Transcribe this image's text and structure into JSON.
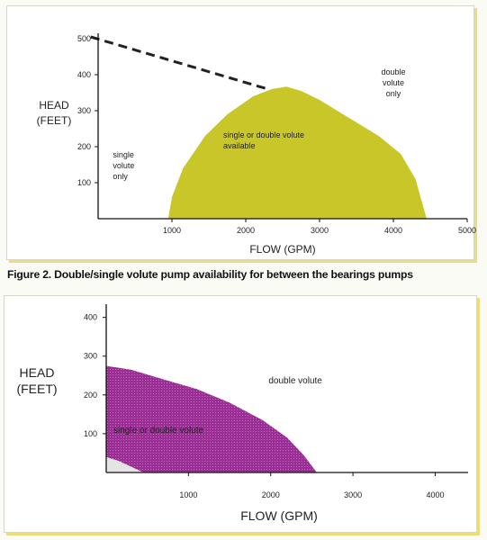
{
  "caption": "Figure 2. Double/single volute pump availability for between the bearings pumps",
  "colors": {
    "yellow_region": "#c9c62a",
    "purple_region": "#9a2e94",
    "grey_region": "#e4e4e4",
    "accent_border": "#e9de7a"
  },
  "chart_data": [
    {
      "type": "area",
      "xlabel": "FLOW (GPM)",
      "ylabel": "HEAD\n(FEET)",
      "xlim": [
        0,
        5000
      ],
      "ylim": [
        0,
        500
      ],
      "x_ticks": [
        "1000",
        "2000",
        "3000",
        "4000",
        "5000"
      ],
      "y_ticks": [
        "100",
        "200",
        "300",
        "400",
        "500"
      ],
      "regions": [
        {
          "label": "single or double volute\navailable",
          "boundary": [
            [
              950,
              0
            ],
            [
              1000,
              60
            ],
            [
              1150,
              140
            ],
            [
              1450,
              230
            ],
            [
              1750,
              290
            ],
            [
              2100,
              340
            ],
            [
              2350,
              360
            ],
            [
              2550,
              367
            ],
            [
              2750,
              355
            ],
            [
              3000,
              330
            ],
            [
              3400,
              280
            ],
            [
              3800,
              230
            ],
            [
              4100,
              180
            ],
            [
              4300,
              110
            ],
            [
              4450,
              0
            ]
          ]
        }
      ],
      "dashed_line": [
        [
          -100,
          505
        ],
        [
          2300,
          360
        ]
      ],
      "annotations": [
        {
          "text": "single\nvolute\nonly",
          "x": 200,
          "y": 170
        },
        {
          "text": "double\nvolute\nonly",
          "x": 4000,
          "y": 400
        }
      ]
    },
    {
      "type": "area",
      "xlabel": "FLOW (GPM)",
      "ylabel": "HEAD\n(FEET)",
      "xlim": [
        0,
        4400
      ],
      "ylim": [
        0,
        420
      ],
      "x_ticks": [
        "1000",
        "2000",
        "3000",
        "4000"
      ],
      "y_ticks": [
        "100",
        "200",
        "300",
        "400"
      ],
      "regions": [
        {
          "label": "single or double volute",
          "boundary": [
            [
              0,
              275
            ],
            [
              300,
              265
            ],
            [
              700,
              240
            ],
            [
              1100,
              215
            ],
            [
              1500,
              180
            ],
            [
              1900,
              135
            ],
            [
              2200,
              90
            ],
            [
              2400,
              45
            ],
            [
              2560,
              0
            ],
            [
              450,
              0
            ],
            [
              300,
              15
            ],
            [
              150,
              30
            ],
            [
              0,
              40
            ]
          ]
        },
        {
          "label": "",
          "boundary": [
            [
              0,
              40
            ],
            [
              150,
              30
            ],
            [
              300,
              15
            ],
            [
              450,
              0
            ],
            [
              0,
              0
            ]
          ]
        }
      ],
      "annotations": [
        {
          "text": "double volute",
          "x": 2300,
          "y": 230
        }
      ]
    }
  ]
}
